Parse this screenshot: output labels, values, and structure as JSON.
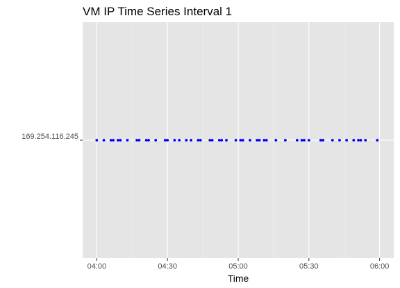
{
  "chart_data": {
    "type": "scatter",
    "title": "VM IP Time Series Interval 1",
    "xlabel": "Time",
    "ylabel": "",
    "x_axis": {
      "scale": "time",
      "range": [
        "03:54",
        "06:06"
      ],
      "ticks": [
        "04:00",
        "04:30",
        "05:00",
        "05:30",
        "06:00"
      ]
    },
    "y_axis": {
      "scale": "categorical",
      "categories": [
        "169.254.116.245"
      ]
    },
    "grid": true,
    "legend": "none",
    "background_color": "#E5E5E5",
    "gridline_color": "#FFFFFF",
    "point_color": "#0000FF",
    "series": [
      {
        "y": "169.254.116.245",
        "x": [
          "04:00",
          "04:03",
          "04:06",
          "04:07",
          "04:09",
          "04:10",
          "04:13",
          "04:17",
          "04:18",
          "04:21",
          "04:22",
          "04:25",
          "04:29",
          "04:30",
          "04:33",
          "04:35",
          "04:38",
          "04:40",
          "04:43",
          "04:44",
          "04:48",
          "04:49",
          "04:52",
          "04:53",
          "04:55",
          "04:59",
          "05:01",
          "05:02",
          "05:05",
          "05:08",
          "05:09",
          "05:11",
          "05:12",
          "05:16",
          "05:20",
          "05:25",
          "05:27",
          "05:28",
          "05:30",
          "05:35",
          "05:36",
          "05:40",
          "05:43",
          "05:46",
          "05:49",
          "05:51",
          "05:52",
          "05:54",
          "05:59"
        ]
      }
    ]
  }
}
